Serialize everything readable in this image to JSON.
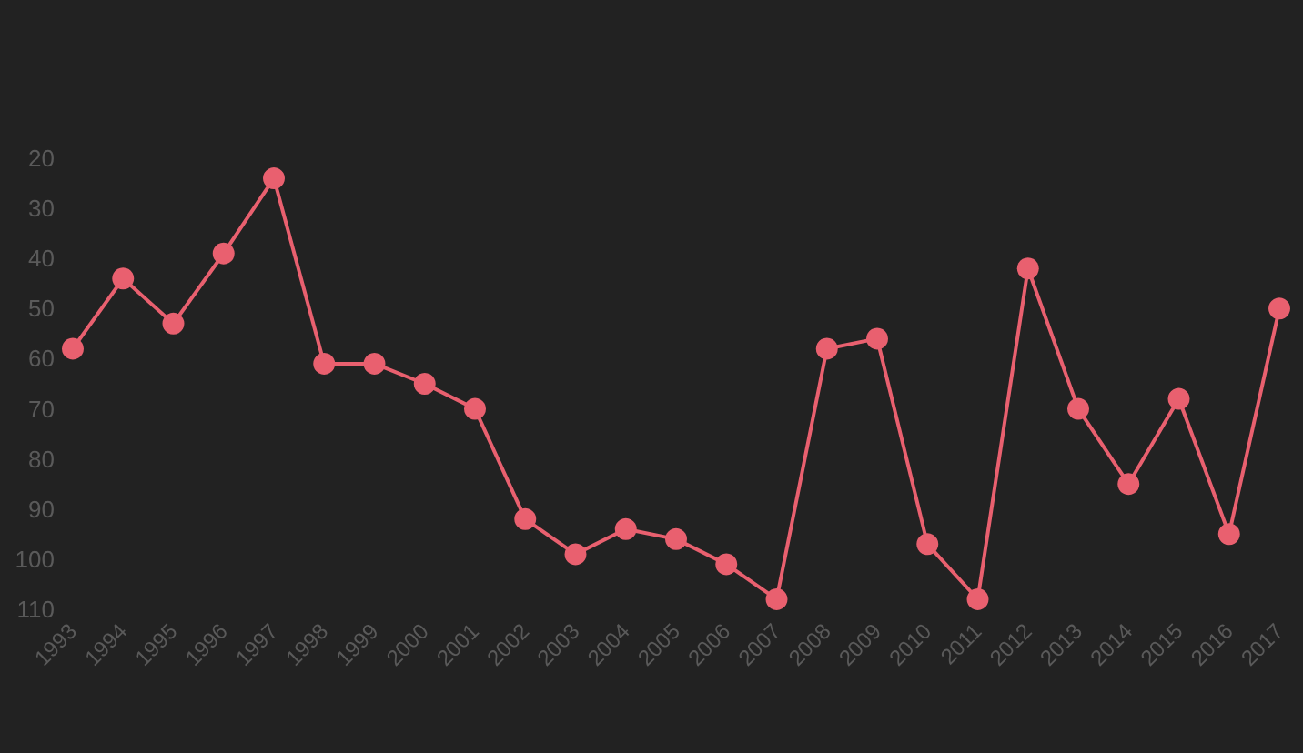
{
  "chart_data": {
    "type": "line",
    "categories": [
      "1993",
      "1994",
      "1995",
      "1996",
      "1997",
      "1998",
      "1999",
      "2000",
      "2001",
      "2002",
      "2003",
      "2004",
      "2005",
      "2006",
      "2007",
      "2008",
      "2009",
      "2010",
      "2011",
      "2012",
      "2013",
      "2014",
      "2015",
      "2016",
      "2017"
    ],
    "series": [
      {
        "color": "#e9606f",
        "values": [
          58,
          44,
          53,
          39,
          24,
          61,
          61,
          65,
          70,
          92,
          99,
          94,
          96,
          101,
          108,
          58,
          56,
          97,
          108,
          42,
          70,
          85,
          68,
          95,
          50
        ]
      }
    ],
    "ylim": [
      110,
      20
    ],
    "yticks": [
      20,
      30,
      40,
      50,
      60,
      70,
      80,
      90,
      100,
      110
    ],
    "grid": false,
    "marker": "circle",
    "line_style": "solid"
  }
}
